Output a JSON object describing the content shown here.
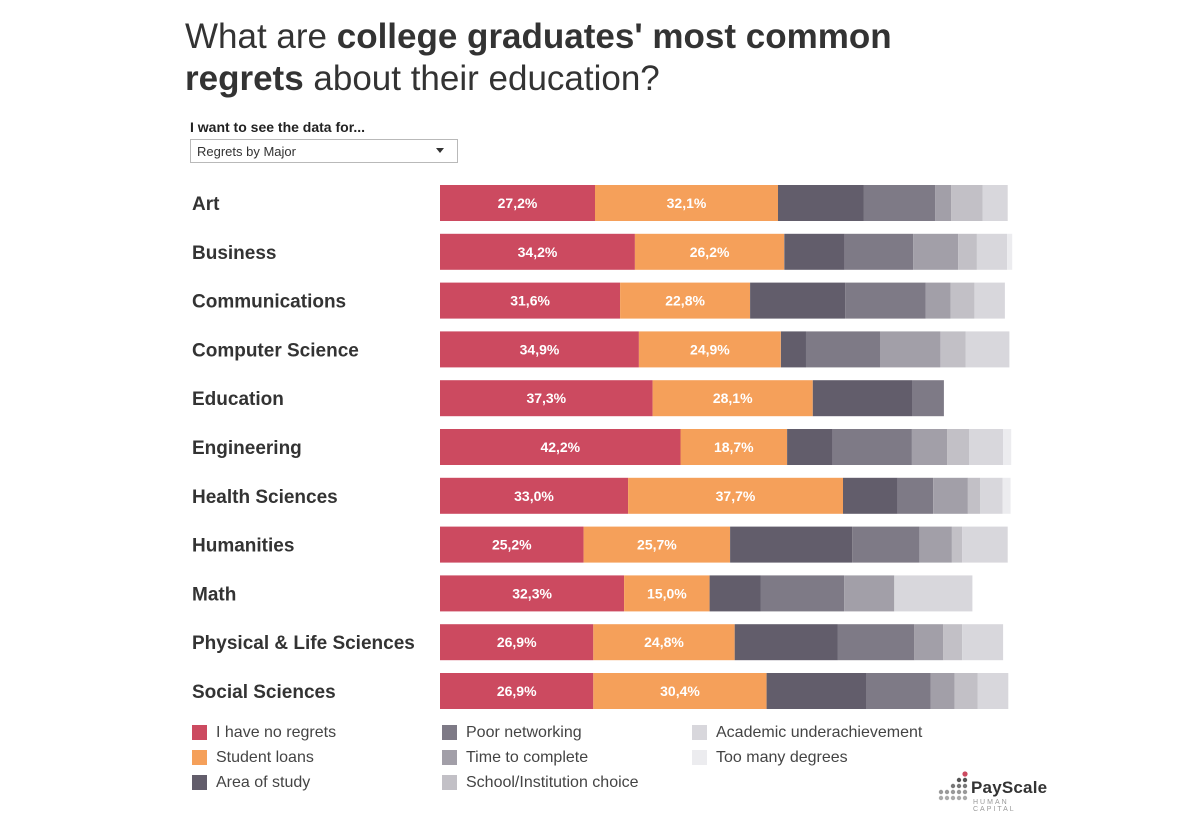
{
  "title": {
    "part1": "What are ",
    "bold1": "college graduates' most common",
    "bold2": "regrets",
    "part2": " about their education?"
  },
  "filter": {
    "label": "I want to see the data for...",
    "selected": "Regrets by Major"
  },
  "logo": {
    "word": "PayScale",
    "sub": "HUMAN CAPITAL",
    "icon": "dot-grid-icon"
  },
  "colors": {
    "I have no regrets": "#cc4a60",
    "Student loans": "#f5a05a",
    "Area of study": "#625d6b",
    "Poor networking": "#7e7a86",
    "Time to complete": "#a29fa8",
    "School/Institution choice": "#c2c0c6",
    "Academic underachievement": "#d8d7dc",
    "Too many degrees": "#ececef"
  },
  "chart_data": {
    "type": "bar",
    "orientation": "horizontal",
    "stacked": true,
    "categories": [
      "Art",
      "Business",
      "Communications",
      "Computer Science",
      "Education",
      "Engineering",
      "Health Sciences",
      "Humanities",
      "Math",
      "Physical & Life Sciences",
      "Social Sciences"
    ],
    "series": [
      {
        "name": "I have no regrets",
        "values": [
          27.2,
          34.2,
          31.6,
          34.9,
          37.3,
          42.2,
          33.0,
          25.2,
          32.3,
          26.9,
          26.9
        ],
        "labels": [
          "27,2%",
          "34,2%",
          "31,6%",
          "34,9%",
          "37,3%",
          "42,2%",
          "33,0%",
          "25,2%",
          "32,3%",
          "26,9%",
          "26,9%"
        ]
      },
      {
        "name": "Student loans",
        "values": [
          32.1,
          26.2,
          22.8,
          24.9,
          28.1,
          18.7,
          37.7,
          25.7,
          15.0,
          24.8,
          30.4
        ],
        "labels": [
          "32,1%",
          "26,2%",
          "22,8%",
          "24,9%",
          "28,1%",
          "18,7%",
          "37,7%",
          "25,7%",
          "15,0%",
          "24,8%",
          "30,4%"
        ]
      },
      {
        "name": "Area of study",
        "values": [
          15.0,
          10.6,
          16.7,
          4.4,
          17.4,
          8.0,
          9.6,
          21.4,
          9.0,
          18.1,
          17.5
        ]
      },
      {
        "name": "Poor networking",
        "values": [
          12.6,
          12.0,
          14.1,
          13.0,
          5.6,
          13.9,
          6.2,
          11.8,
          14.6,
          13.4,
          11.3
        ]
      },
      {
        "name": "Time to complete",
        "values": [
          2.8,
          7.9,
          4.4,
          10.6,
          0,
          6.2,
          6.1,
          5.7,
          8.8,
          5.1,
          4.2
        ]
      },
      {
        "name": "School/Institution choice",
        "values": [
          5.5,
          3.3,
          4.2,
          4.4,
          0,
          3.8,
          2.2,
          1.8,
          0,
          3.3,
          4.0
        ]
      },
      {
        "name": "Academic underachievement",
        "values": [
          4.4,
          5.3,
          5.3,
          7.7,
          0,
          6.0,
          3.9,
          8.0,
          13.7,
          7.2,
          5.4
        ]
      },
      {
        "name": "Too many degrees",
        "values": [
          0,
          0.9,
          0,
          0,
          0,
          1.4,
          1.4,
          0,
          0,
          0,
          0
        ]
      }
    ],
    "xlim": [
      0,
      100
    ],
    "legend": "bottom"
  }
}
